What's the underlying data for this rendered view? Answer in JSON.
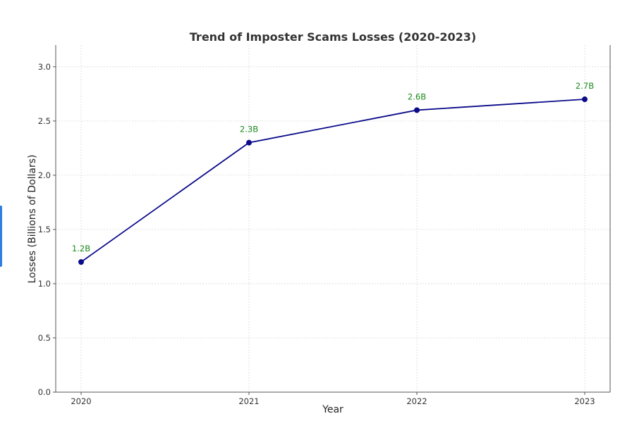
{
  "chart_data": {
    "type": "line",
    "title": "Trend of Imposter Scams Losses (2020-2023)",
    "xlabel": "Year",
    "ylabel": "Losses (Billions of Dollars)",
    "x": [
      "2020",
      "2021",
      "2022",
      "2023"
    ],
    "ylim": [
      0,
      3.2
    ],
    "yticks": [
      "0.0",
      "0.5",
      "1.0",
      "1.5",
      "2.0",
      "2.5",
      "3.0"
    ],
    "series": [
      {
        "values": [
          1.2,
          2.3,
          2.6,
          2.7
        ],
        "data_labels": [
          "1.2B",
          "2.3B",
          "2.6B",
          "2.7B"
        ],
        "color": "#0a0a8a"
      }
    ],
    "data_label_color": "#1a8a1a",
    "grid": true,
    "legend": "none"
  }
}
